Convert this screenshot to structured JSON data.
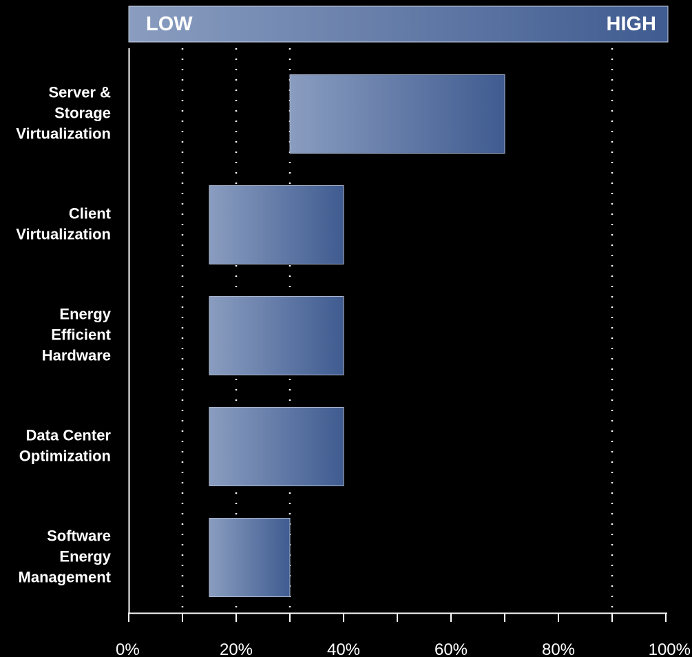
{
  "chart_data": {
    "type": "bar",
    "orientation": "horizontal",
    "bar_style": "floating-range",
    "scale_header": {
      "low": "LOW",
      "high": "HIGH"
    },
    "categories": [
      [
        "Server &",
        "Storage",
        "Virtualization"
      ],
      [
        "Client",
        "Virtualization"
      ],
      [
        "Energy",
        "Efficient",
        "Hardware"
      ],
      [
        "Data Center",
        "Optimization"
      ],
      [
        "Software",
        "Energy",
        "Management"
      ]
    ],
    "ranges": [
      [
        30,
        70
      ],
      [
        15,
        40
      ],
      [
        15,
        40
      ],
      [
        15,
        40
      ],
      [
        15,
        30
      ]
    ],
    "xlim": [
      0,
      100
    ],
    "x_ticks": [
      0,
      20,
      40,
      60,
      80,
      100
    ],
    "x_tick_labels": [
      "0%",
      "20%",
      "40%",
      "60%",
      "80%",
      "100%"
    ],
    "dotted_gridlines": [
      10,
      20,
      30,
      90
    ],
    "colors": {
      "background": "#000000",
      "bar_light": "#8a9dc0",
      "bar_dark": "#3f5b90",
      "axis": "#ffffff",
      "text": "#ffffff"
    }
  }
}
